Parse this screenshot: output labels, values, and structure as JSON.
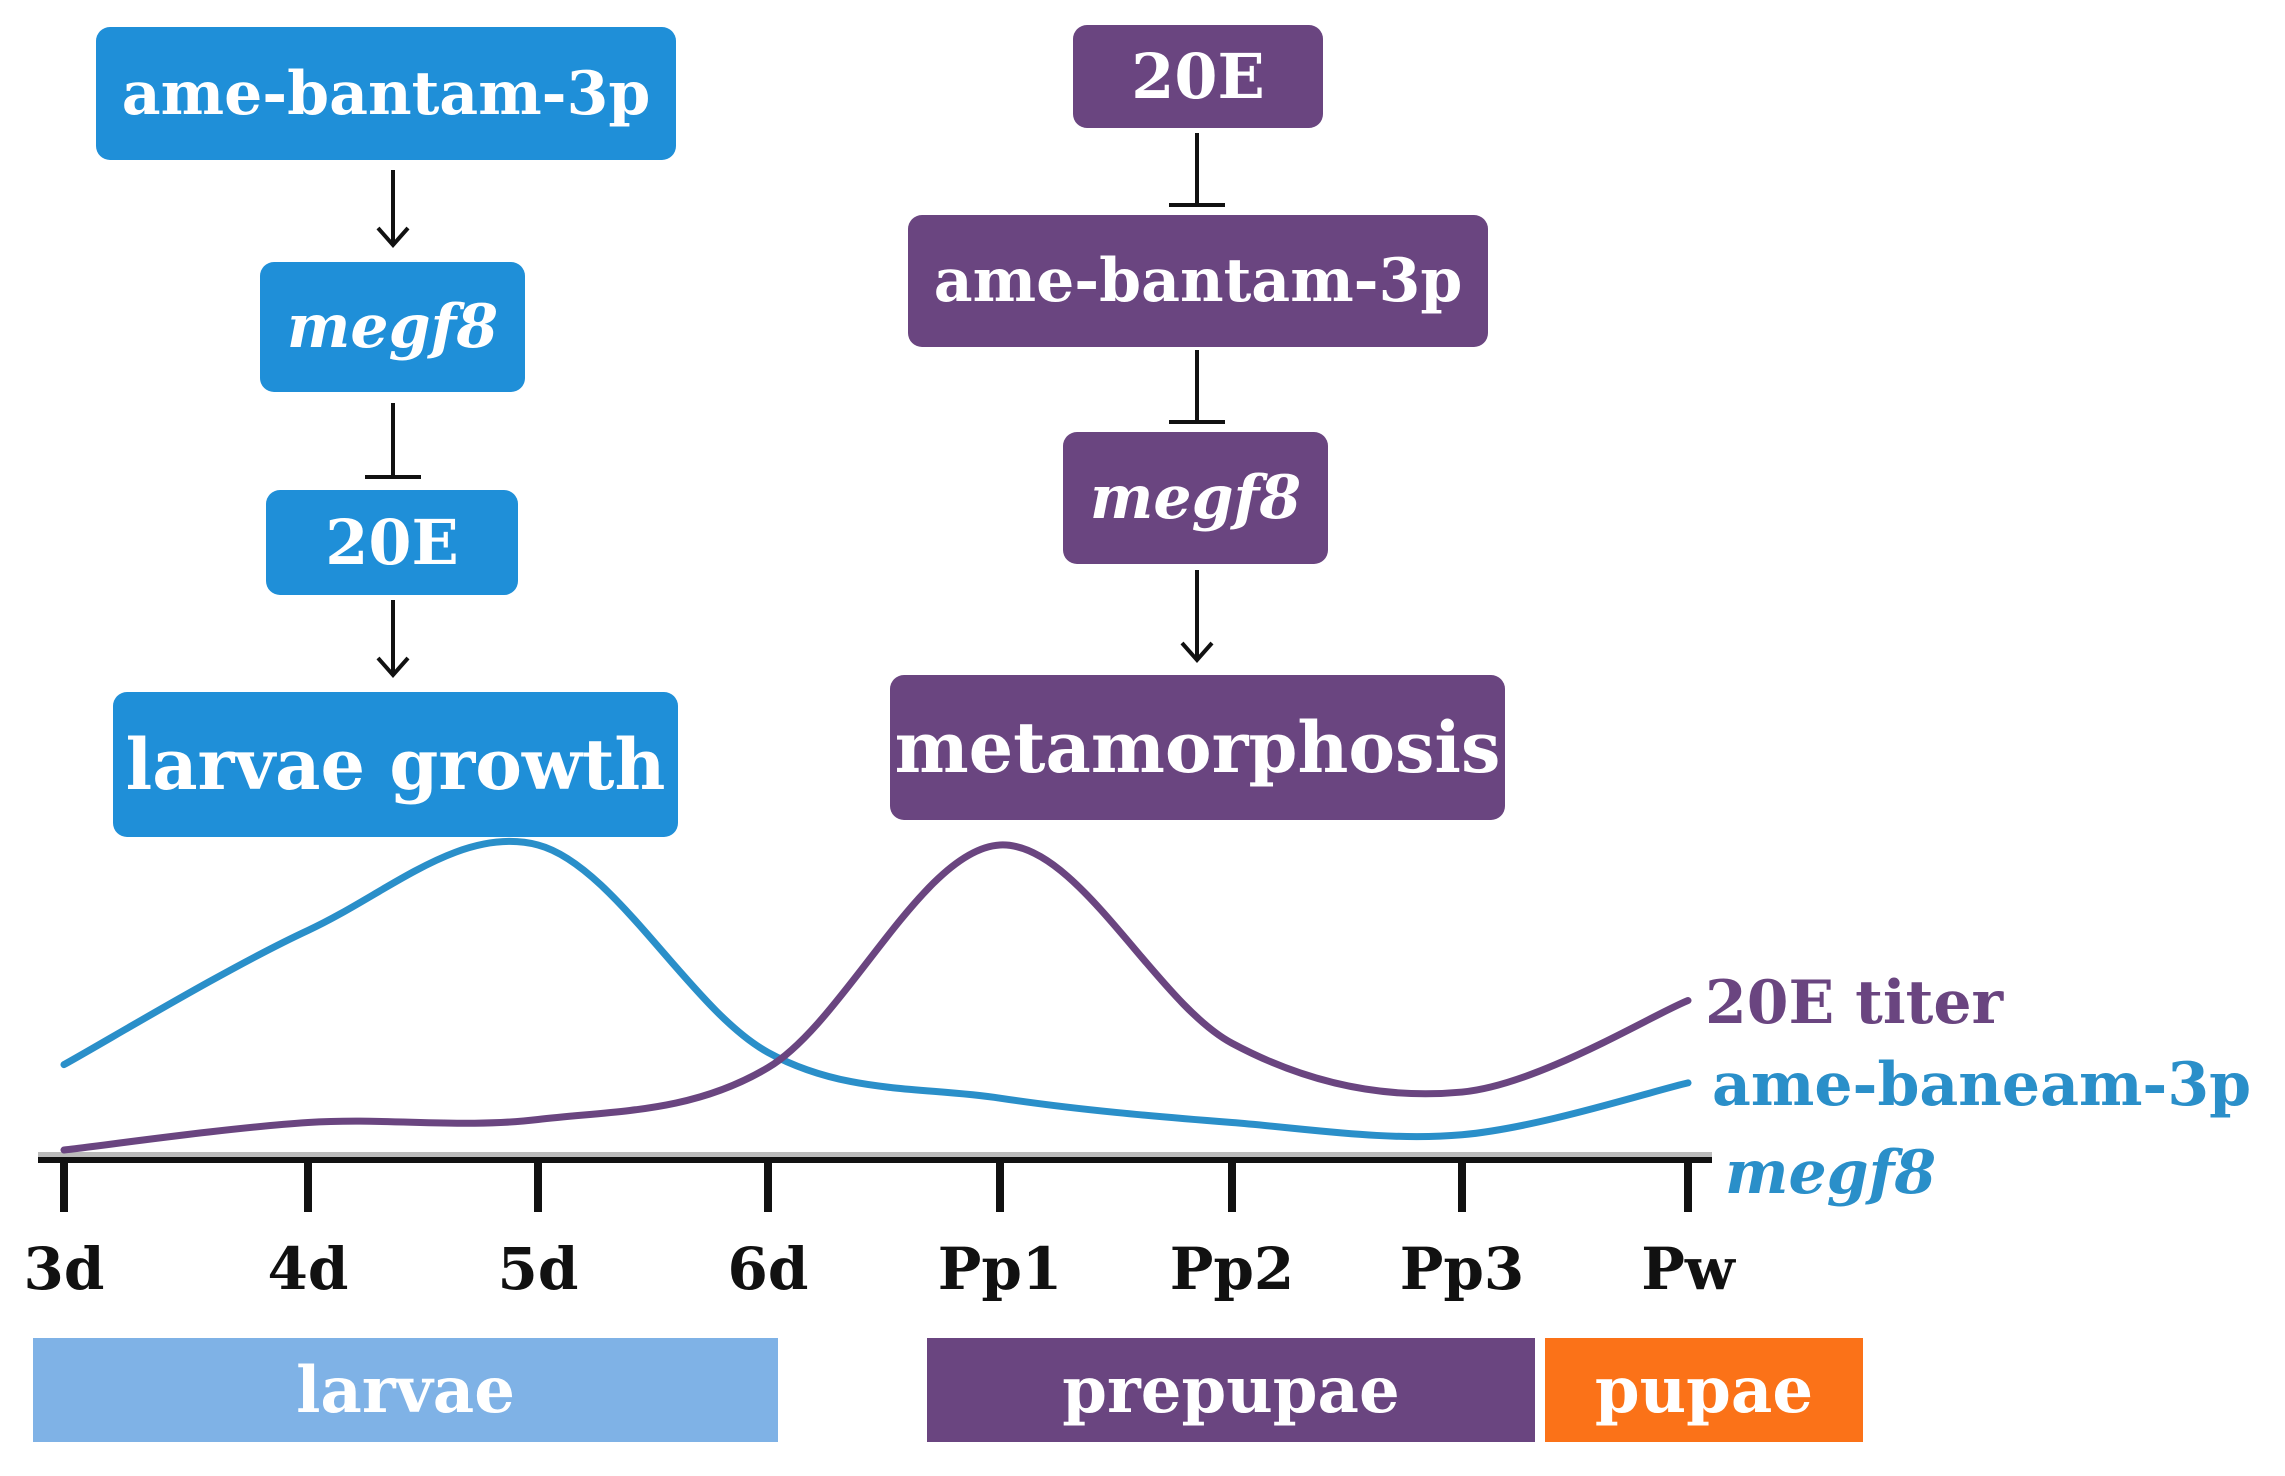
{
  "colors": {
    "blue": "#1f8fd8",
    "purple": "#6a4580",
    "larvae_band": "#7fb2e6",
    "pupae_band": "#fb7218",
    "curve_blue": "#2a8fc9",
    "curve_purple": "#6a4580"
  },
  "pathway_larvae": {
    "box1": "ame-bantam-3p",
    "box2": "megf8",
    "box3": "20E",
    "box4": "larvae growth",
    "arrows": [
      "activates",
      "inhibits",
      "activates"
    ]
  },
  "pathway_metamorphosis": {
    "box1": "20E",
    "box2": "ame-bantam-3p",
    "box3": "megf8",
    "box4": "metamorphosis",
    "arrows": [
      "inhibits",
      "inhibits",
      "activates"
    ]
  },
  "chart_data": {
    "type": "line",
    "x": [
      "3d",
      "4d",
      "5d",
      "6d",
      "Pp1",
      "Pp2",
      "Pp3",
      "Pw"
    ],
    "ylabel": "",
    "ylim": [
      0,
      1
    ],
    "series": [
      {
        "name": "ame-baneam-3p",
        "values": [
          0.28,
          0.72,
          1.0,
          0.32,
          0.17,
          0.09,
          0.05,
          0.22
        ]
      },
      {
        "name": "20E titer",
        "values": [
          0.0,
          0.09,
          0.1,
          0.27,
          1.0,
          0.35,
          0.19,
          0.49
        ]
      }
    ],
    "extra_label": "megf8",
    "stages": [
      {
        "name": "larvae",
        "from": "3d",
        "to": "6d"
      },
      {
        "name": "prepupae",
        "from": "Pp1",
        "to": "Pp3"
      },
      {
        "name": "pupae",
        "from": "Pp3",
        "to": "Pw"
      }
    ]
  }
}
